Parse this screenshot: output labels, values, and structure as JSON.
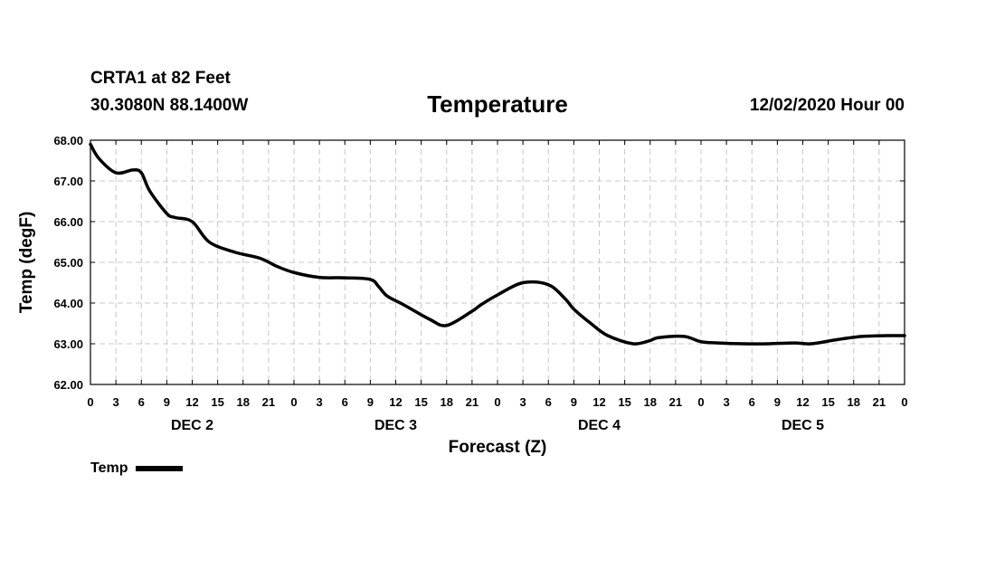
{
  "header": {
    "station": "CRTA1 at 82 Feet",
    "coords": "30.3080N 88.1400W",
    "title": "Temperature",
    "datetime": "12/02/2020 Hour 00"
  },
  "legend": {
    "label": "Temp"
  },
  "colors": {
    "line": "#000000",
    "grid": "#c8c8c8",
    "background": "#ffffff"
  },
  "chart_data": {
    "type": "line",
    "title": "Temperature",
    "xlabel": "Forecast (Z)",
    "ylabel": "Temp (degF)",
    "xlim": [
      0,
      96
    ],
    "ylim": [
      62.0,
      68.0
    ],
    "yticks": [
      "62.00",
      "63.00",
      "64.00",
      "65.00",
      "66.00",
      "67.00",
      "68.00"
    ],
    "xticks": [
      "0",
      "3",
      "6",
      "9",
      "12",
      "15",
      "18",
      "21",
      "0",
      "3",
      "6",
      "9",
      "12",
      "15",
      "18",
      "21",
      "0",
      "3",
      "6",
      "9",
      "12",
      "15",
      "18",
      "21",
      "0",
      "3",
      "6",
      "9",
      "12",
      "15",
      "18",
      "21",
      "0"
    ],
    "day_labels": [
      {
        "label": "DEC 2",
        "hour": 12
      },
      {
        "label": "DEC 3",
        "hour": 36
      },
      {
        "label": "DEC 4",
        "hour": 60
      },
      {
        "label": "DEC 5",
        "hour": 84
      }
    ],
    "grid": true,
    "series": [
      {
        "name": "Temp",
        "x": [
          0,
          1,
          3,
          5,
          6,
          7,
          9,
          10,
          12,
          14,
          17,
          20,
          22,
          24,
          27,
          30,
          33,
          34,
          35,
          37,
          40,
          42,
          45,
          46,
          48,
          51,
          54,
          56,
          57,
          59,
          61,
          64,
          66,
          67,
          70,
          72,
          74,
          77,
          80,
          83,
          85,
          88,
          91,
          94,
          96
        ],
        "values": [
          67.9,
          67.55,
          67.2,
          67.27,
          67.2,
          66.75,
          66.2,
          66.1,
          66.0,
          65.5,
          65.25,
          65.1,
          64.9,
          64.75,
          64.63,
          64.62,
          64.58,
          64.4,
          64.17,
          63.95,
          63.6,
          63.45,
          63.8,
          63.95,
          64.2,
          64.5,
          64.45,
          64.1,
          63.85,
          63.5,
          63.2,
          63.0,
          63.08,
          63.15,
          63.18,
          63.05,
          63.02,
          63.0,
          63.0,
          63.02,
          63.0,
          63.1,
          63.18,
          63.2,
          63.2
        ]
      }
    ]
  }
}
